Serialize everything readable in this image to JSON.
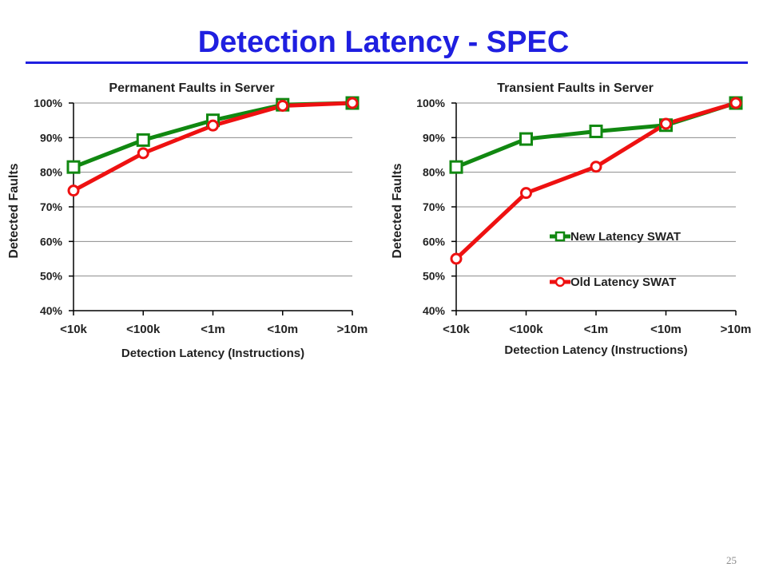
{
  "slide": {
    "title": "Detection Latency - SPEC",
    "page_number": "25"
  },
  "colors": {
    "title": "#1f1fe0",
    "new_series": "#118811",
    "old_series": "#ee1111",
    "grid": "#8c8c8c",
    "text": "#222222"
  },
  "chart_data": [
    {
      "type": "line",
      "title": "Permanent Faults in Server",
      "xlabel": "Detection Latency (Instructions)",
      "ylabel": "Detected Faults",
      "categories": [
        "<10k",
        "<100k",
        "<1m",
        "<10m",
        ">10m"
      ],
      "ylim": [
        40,
        100
      ],
      "yticks": [
        "40%",
        "50%",
        "60%",
        "70%",
        "80%",
        "90%",
        "100%"
      ],
      "grid": true,
      "legend": null,
      "series": [
        {
          "key": "new",
          "values": [
            81.5,
            89.3,
            95.0,
            99.5,
            100
          ]
        },
        {
          "key": "old",
          "values": [
            74.7,
            85.5,
            93.5,
            99.2,
            100
          ]
        }
      ]
    },
    {
      "type": "line",
      "title": "Transient Faults in Server",
      "xlabel": "Detection Latency (Instructions)",
      "ylabel": "Detected Faults",
      "categories": [
        "<10k",
        "<100k",
        "<1m",
        "<10m",
        ">10m"
      ],
      "ylim": [
        40,
        100
      ],
      "yticks": [
        "40%",
        "50%",
        "60%",
        "70%",
        "80%",
        "90%",
        "100%"
      ],
      "grid": true,
      "legend": "inside-right",
      "series": [
        {
          "key": "new",
          "name": "New Latency SWAT",
          "values": [
            81.5,
            89.6,
            91.8,
            93.6,
            100
          ]
        },
        {
          "key": "old",
          "name": "Old Latency SWAT",
          "values": [
            55.0,
            74.0,
            81.6,
            94.0,
            100
          ]
        }
      ]
    }
  ]
}
